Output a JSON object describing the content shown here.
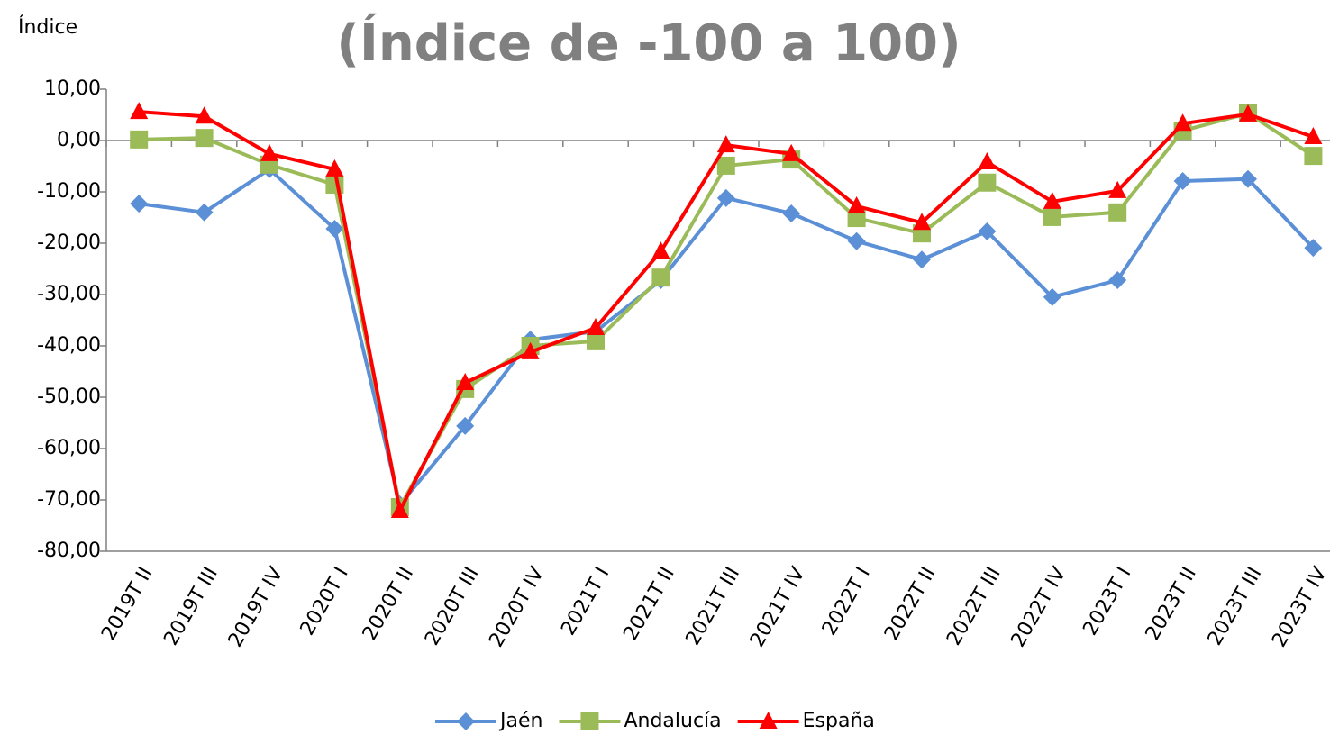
{
  "chart_data": {
    "type": "line",
    "title": "(Índice de -100 a 100)",
    "y_label": "Índice",
    "categories": [
      "2019T II",
      "2019T III",
      "2019T IV",
      "2020T I",
      "2020T II",
      "2020T III",
      "2020T IV",
      "2021T I",
      "2021T II",
      "2021T III",
      "2021T IV",
      "2022T I",
      "2022T II",
      "2022T III",
      "2022T IV",
      "2023T I",
      "2023T II",
      "2023T III",
      "2023T IV"
    ],
    "series": [
      {
        "name": "Jaén",
        "color": "#5b8fd6",
        "marker": "diamond",
        "values": [
          -12.3,
          -14.0,
          -5.6,
          -17.2,
          -70.9,
          -55.6,
          -38.8,
          -37.2,
          -27.2,
          -11.2,
          -14.2,
          -19.6,
          -23.2,
          -17.7,
          -30.5,
          -27.2,
          -7.9,
          -7.5,
          -20.9
        ]
      },
      {
        "name": "Andalucía",
        "color": "#9bbb59",
        "marker": "square",
        "values": [
          0.2,
          0.5,
          -4.7,
          -8.6,
          -71.4,
          -48.4,
          -40.0,
          -39.1,
          -26.7,
          -4.9,
          -3.7,
          -15.1,
          -18.1,
          -8.2,
          -14.9,
          -14.0,
          1.9,
          5.3,
          -3.0
        ]
      },
      {
        "name": "España",
        "color": "#ff0000",
        "marker": "triangle",
        "values": [
          5.6,
          4.7,
          -2.6,
          -5.6,
          -72.1,
          -47.2,
          -41.2,
          -36.5,
          -21.6,
          -0.9,
          -2.6,
          -12.8,
          -16.0,
          -4.2,
          -11.9,
          -9.8,
          3.3,
          5.1,
          0.7
        ]
      }
    ],
    "ylim": [
      -80,
      10
    ],
    "yticks": [
      {
        "value": 10,
        "label": "10,00"
      },
      {
        "value": 0,
        "label": "0,00"
      },
      {
        "value": -10,
        "label": "-10,00"
      },
      {
        "value": -20,
        "label": "-20,00"
      },
      {
        "value": -30,
        "label": "-30,00"
      },
      {
        "value": -40,
        "label": "-40,00"
      },
      {
        "value": -50,
        "label": "-50,00"
      },
      {
        "value": -60,
        "label": "-60,00"
      },
      {
        "value": -70,
        "label": "-70,00"
      },
      {
        "value": -80,
        "label": "-80,00"
      }
    ],
    "grid": false,
    "legend": "bottom"
  }
}
